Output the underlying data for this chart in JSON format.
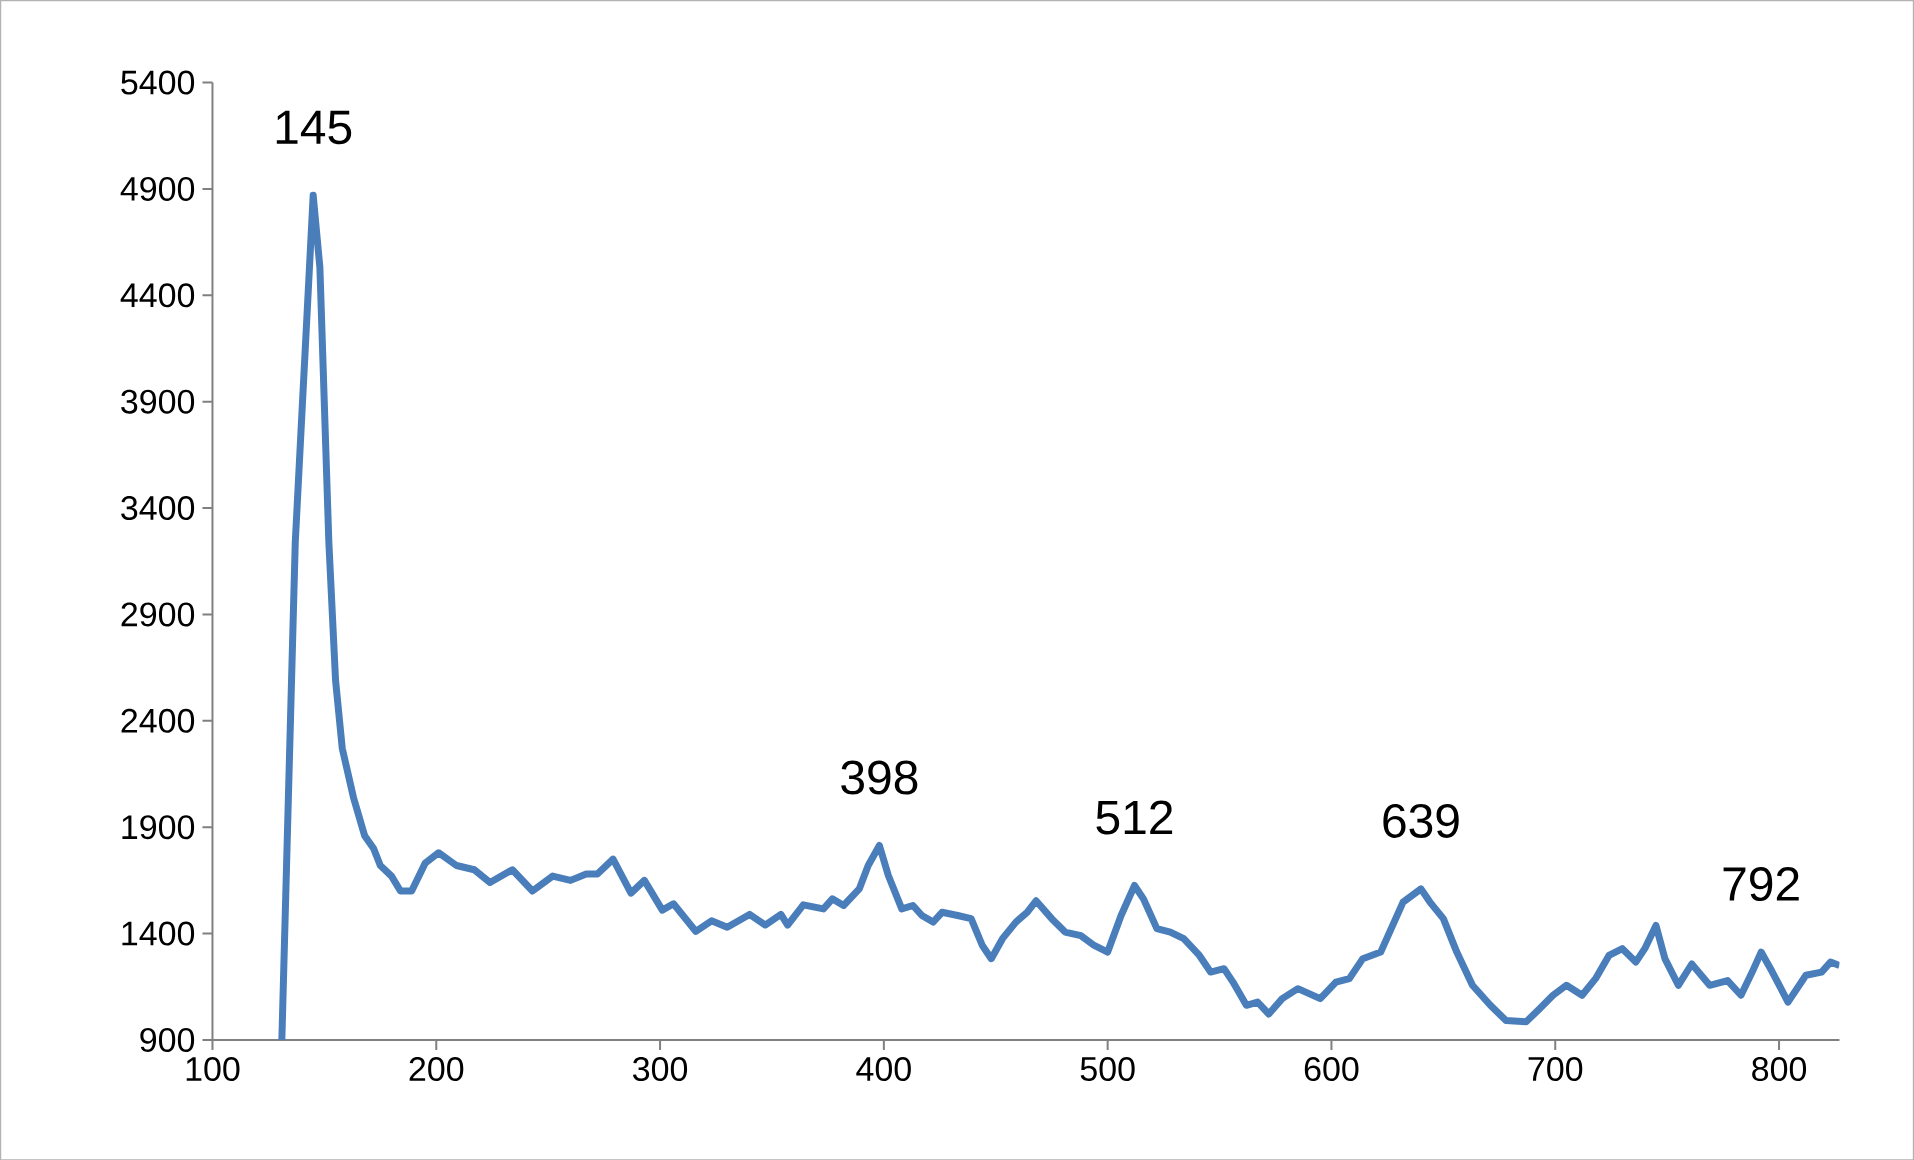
{
  "chart_data": {
    "type": "line",
    "color": "#4a7ebb",
    "marker": "none",
    "line_style": "solid",
    "grid": false,
    "xlim": [
      100,
      827
    ],
    "ylim": [
      900,
      5400
    ],
    "xticks": [
      100,
      200,
      300,
      400,
      500,
      600,
      700,
      800
    ],
    "yticks": [
      900,
      1400,
      1900,
      2400,
      2900,
      3400,
      3900,
      4400,
      4900,
      5400
    ],
    "x": [
      131,
      137,
      145,
      148,
      152,
      155,
      158,
      163,
      168,
      172,
      175,
      180,
      184,
      189,
      195,
      201,
      209,
      217,
      224,
      234,
      243,
      252,
      260,
      267,
      272,
      279,
      287,
      293,
      301,
      306,
      316,
      323,
      330,
      340,
      347,
      354,
      357,
      364,
      373,
      377,
      382,
      389,
      393,
      398,
      402,
      408,
      413,
      417,
      422,
      426,
      433,
      439,
      444,
      448,
      453,
      459,
      464,
      468,
      475,
      481,
      488,
      494,
      500,
      506,
      512,
      516,
      522,
      528,
      534,
      541,
      546,
      552,
      556,
      562,
      567,
      572,
      578,
      585,
      595,
      602,
      608,
      614,
      622,
      628,
      632,
      640,
      644,
      650,
      656,
      663,
      671,
      678,
      687,
      693,
      699,
      705,
      712,
      718,
      724,
      730,
      736,
      740,
      745,
      749,
      755,
      761,
      769,
      777,
      783,
      788,
      792,
      797,
      804,
      812,
      819,
      823,
      827
    ],
    "values": [
      900,
      3240,
      4870,
      4530,
      3240,
      2590,
      2270,
      2040,
      1860,
      1800,
      1720,
      1670,
      1600,
      1600,
      1730,
      1780,
      1720,
      1700,
      1640,
      1700,
      1600,
      1670,
      1650,
      1680,
      1680,
      1750,
      1590,
      1650,
      1510,
      1540,
      1410,
      1460,
      1430,
      1490,
      1440,
      1490,
      1440,
      1535,
      1516,
      1563,
      1532,
      1610,
      1720,
      1814,
      1673,
      1516,
      1532,
      1485,
      1454,
      1500,
      1485,
      1470,
      1344,
      1282,
      1376,
      1454,
      1500,
      1554,
      1470,
      1407,
      1390,
      1344,
      1313,
      1485,
      1626,
      1563,
      1423,
      1407,
      1376,
      1297,
      1219,
      1235,
      1172,
      1063,
      1078,
      1022,
      1094,
      1141,
      1094,
      1172,
      1188,
      1282,
      1313,
      1454,
      1548,
      1610,
      1548,
      1470,
      1313,
      1157,
      1063,
      991,
      985,
      1047,
      1110,
      1157,
      1110,
      1188,
      1297,
      1329,
      1266,
      1329,
      1438,
      1282,
      1157,
      1257,
      1157,
      1179,
      1110,
      1219,
      1313,
      1219,
      1078,
      1204,
      1219,
      1266,
      1250
    ],
    "annotations": [
      {
        "text": "145",
        "x": 145,
        "y": 4870
      },
      {
        "text": "398",
        "x": 398,
        "y": 1814
      },
      {
        "text": "512",
        "x": 512,
        "y": 1626
      },
      {
        "text": "639",
        "x": 640,
        "y": 1610
      },
      {
        "text": "792",
        "x": 792,
        "y": 1313
      }
    ]
  }
}
